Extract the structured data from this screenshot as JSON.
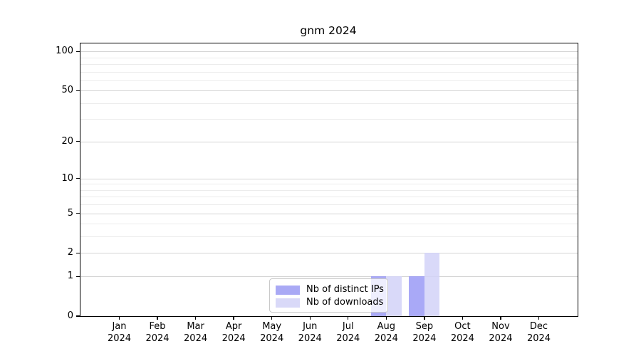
{
  "title": "gnm 2024",
  "legend": {
    "items": [
      {
        "label": "Nb of distinct IPs",
        "key": "distinct-ips"
      },
      {
        "label": "Nb of downloads",
        "key": "downloads"
      }
    ]
  },
  "colors": {
    "distinct_ips_bar": "rgba(150,150,245,0.82)",
    "downloads_bar": "rgba(210,210,248,0.85)",
    "distinct_ips_swatch": "#a9a9f5",
    "downloads_swatch": "#d9d9f8",
    "grid_major": "#d4d4d4",
    "grid_minor": "#ececec",
    "axis": "#000000",
    "legend_border": "#c9c9c9",
    "legend_bg": "rgba(255,255,255,0.8)"
  },
  "y_axis": {
    "tick_labels": [
      "100",
      "50",
      "20",
      "10",
      "5",
      "2",
      "1",
      "0"
    ]
  },
  "x_axis": {
    "months": [
      "Jan",
      "Feb",
      "Mar",
      "Apr",
      "May",
      "Jun",
      "Jul",
      "Aug",
      "Sep",
      "Oct",
      "Nov",
      "Dec"
    ],
    "year": "2024"
  },
  "chart_data": {
    "type": "bar",
    "title": "gnm 2024",
    "categories": [
      "Jan 2024",
      "Feb 2024",
      "Mar 2024",
      "Apr 2024",
      "May 2024",
      "Jun 2024",
      "Jul 2024",
      "Aug 2024",
      "Sep 2024",
      "Oct 2024",
      "Nov 2024",
      "Dec 2024"
    ],
    "series": [
      {
        "name": "Nb of distinct IPs",
        "key": "distinct-ips",
        "values": [
          0,
          0,
          0,
          0,
          0,
          0,
          0,
          1,
          1,
          0,
          0,
          0
        ]
      },
      {
        "name": "Nb of downloads",
        "key": "downloads",
        "values": [
          0,
          0,
          0,
          0,
          0,
          0,
          0,
          1,
          2,
          0,
          0,
          0
        ]
      }
    ],
    "y_scale": "log1p",
    "y_ticks": [
      0,
      1,
      2,
      5,
      10,
      20,
      50,
      100
    ],
    "y_minor_gridlines": [
      3,
      4,
      6,
      7,
      8,
      9,
      30,
      40,
      60,
      70,
      80,
      90
    ],
    "ylim": [
      0,
      115
    ],
    "grid": "horizontal-only",
    "legend_position": "lower-center-inside"
  }
}
